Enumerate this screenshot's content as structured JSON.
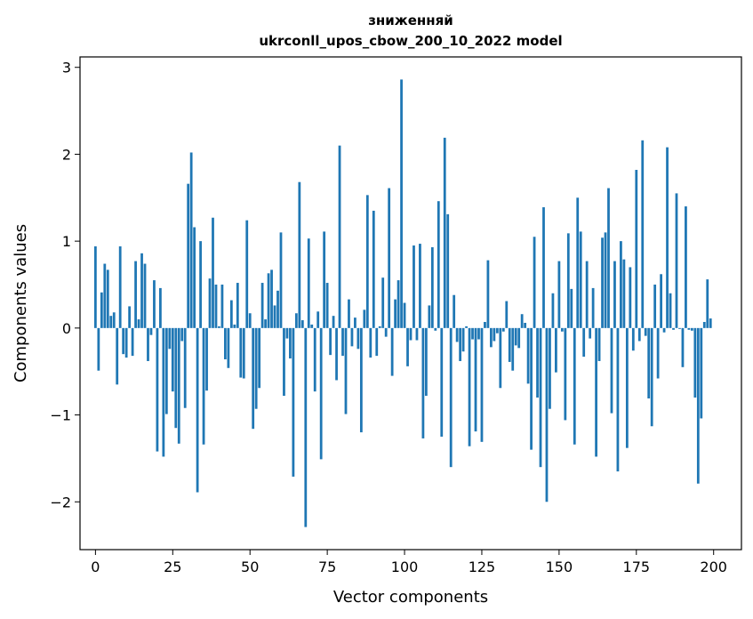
{
  "chart_data": {
    "type": "bar",
    "title_line1": "зниженняй",
    "title_line2": "ukrconll_upos_cbow_200_10_2022 model",
    "xlabel": "Vector components",
    "ylabel": "Components values",
    "xlim": [
      -5,
      209
    ],
    "ylim": [
      -2.55,
      3.12
    ],
    "xticks": [
      0,
      25,
      50,
      75,
      100,
      125,
      150,
      175,
      200
    ],
    "xtick_labels": [
      "0",
      "25",
      "50",
      "75",
      "100",
      "125",
      "150",
      "175",
      "200"
    ],
    "yticks": [
      -2,
      -1,
      0,
      1,
      2,
      3
    ],
    "ytick_labels": [
      "−2",
      "−1",
      "0",
      "1",
      "2",
      "3"
    ],
    "grid": false,
    "color": "#1f77b4",
    "x": [
      0,
      1,
      2,
      3,
      4,
      5,
      6,
      7,
      8,
      9,
      10,
      11,
      12,
      13,
      14,
      15,
      16,
      17,
      18,
      19,
      20,
      21,
      22,
      23,
      24,
      25,
      26,
      27,
      28,
      29,
      30,
      31,
      32,
      33,
      34,
      35,
      36,
      37,
      38,
      39,
      40,
      41,
      42,
      43,
      44,
      45,
      46,
      47,
      48,
      49,
      50,
      51,
      52,
      53,
      54,
      55,
      56,
      57,
      58,
      59,
      60,
      61,
      62,
      63,
      64,
      65,
      66,
      67,
      68,
      69,
      70,
      71,
      72,
      73,
      74,
      75,
      76,
      77,
      78,
      79,
      80,
      81,
      82,
      83,
      84,
      85,
      86,
      87,
      88,
      89,
      90,
      91,
      92,
      93,
      94,
      95,
      96,
      97,
      98,
      99,
      100,
      101,
      102,
      103,
      104,
      105,
      106,
      107,
      108,
      109,
      110,
      111,
      112,
      113,
      114,
      115,
      116,
      117,
      118,
      119,
      120,
      121,
      122,
      123,
      124,
      125,
      126,
      127,
      128,
      129,
      130,
      131,
      132,
      133,
      134,
      135,
      136,
      137,
      138,
      139,
      140,
      141,
      142,
      143,
      144,
      145,
      146,
      147,
      148,
      149,
      150,
      151,
      152,
      153,
      154,
      155,
      156,
      157,
      158,
      159,
      160,
      161,
      162,
      163,
      164,
      165,
      166,
      167,
      168,
      169,
      170,
      171,
      172,
      173,
      174,
      175,
      176,
      177,
      178,
      179,
      180,
      181,
      182,
      183,
      184,
      185,
      186,
      187,
      188,
      189,
      190,
      191,
      192,
      193,
      194,
      195,
      196,
      197,
      198,
      199
    ],
    "values": [
      0.94,
      -0.49,
      0.41,
      0.74,
      0.67,
      0.14,
      0.18,
      -0.65,
      0.94,
      -0.3,
      -0.34,
      0.25,
      -0.32,
      0.77,
      0.1,
      0.86,
      0.74,
      -0.38,
      -0.08,
      0.55,
      -1.42,
      0.46,
      -1.48,
      -0.99,
      -0.24,
      -0.73,
      -1.15,
      -1.33,
      -0.15,
      -0.92,
      1.66,
      2.02,
      1.16,
      -1.89,
      1.0,
      -1.34,
      -0.72,
      0.57,
      1.27,
      0.5,
      0.02,
      0.5,
      -0.36,
      -0.46,
      0.32,
      0.04,
      0.52,
      -0.57,
      -0.58,
      1.24,
      0.17,
      -1.16,
      -0.93,
      -0.69,
      0.52,
      0.1,
      0.63,
      0.67,
      0.26,
      0.43,
      1.1,
      -0.78,
      -0.12,
      -0.35,
      -1.71,
      0.17,
      1.68,
      0.09,
      -2.29,
      1.03,
      0.04,
      -0.73,
      0.19,
      -1.51,
      1.11,
      0.52,
      -0.31,
      0.14,
      -0.6,
      2.1,
      -0.32,
      -0.99,
      0.33,
      -0.21,
      0.12,
      -0.24,
      -1.2,
      0.21,
      1.53,
      -0.34,
      1.35,
      -0.32,
      0.02,
      0.58,
      -0.1,
      1.61,
      -0.55,
      0.33,
      0.55,
      2.86,
      0.29,
      -0.44,
      -0.14,
      0.95,
      -0.14,
      0.97,
      -1.27,
      -0.78,
      0.26,
      0.93,
      -0.03,
      1.46,
      -1.25,
      2.19,
      1.31,
      -1.6,
      0.38,
      -0.16,
      -0.38,
      -0.27,
      0.02,
      -1.36,
      -0.13,
      -1.19,
      -0.13,
      -1.31,
      0.07,
      0.78,
      -0.22,
      -0.15,
      -0.06,
      -0.69,
      -0.04,
      0.31,
      -0.39,
      -0.49,
      -0.2,
      -0.23,
      0.16,
      0.06,
      -0.64,
      -1.4,
      1.05,
      -0.8,
      -1.6,
      1.39,
      -2.0,
      -0.93,
      0.4,
      -0.51,
      0.77,
      -0.04,
      -1.06,
      1.09,
      0.45,
      -1.34,
      1.5,
      1.11,
      -0.33,
      0.77,
      -0.12,
      0.46,
      -1.48,
      -0.38,
      1.04,
      1.1,
      1.61,
      -0.98,
      0.77,
      -1.65,
      1.0,
      0.79,
      -1.38,
      0.7,
      -0.26,
      1.82,
      -0.15,
      2.16,
      -0.09,
      -0.81,
      -1.13,
      0.5,
      -0.58,
      0.62,
      -0.05,
      2.08,
      0.4,
      -0.02,
      1.55,
      -0.01,
      -0.45,
      1.4,
      -0.02,
      -0.03,
      -0.8,
      -1.79,
      -1.04,
      0.07,
      0.56,
      0.11
    ]
  }
}
